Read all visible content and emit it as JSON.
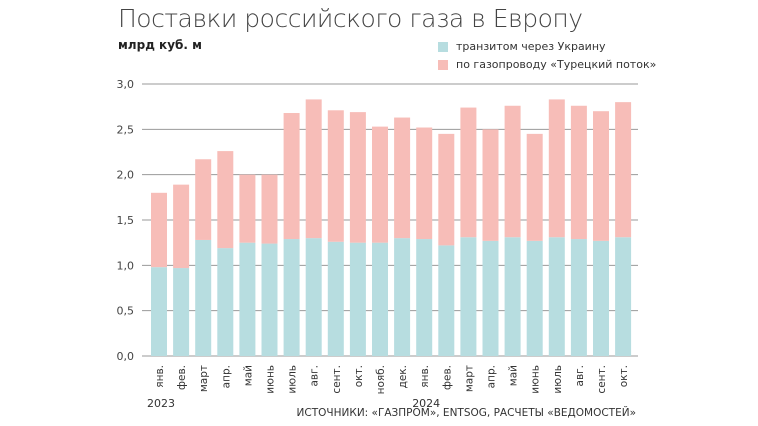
{
  "title": "Поставки российского газа в Европу",
  "unit": "млрд куб. м",
  "source": "ИСТОЧНИКИ: «ГАЗПРОМ», ENTSOG, РАСЧЕТЫ «ВЕДОМОСТЕЙ»",
  "chart_data": {
    "type": "bar",
    "stacked": true,
    "title": "Поставки российского газа в Европу",
    "ylabel": "млрд куб. м",
    "ylim": [
      0,
      3.0
    ],
    "yticks": [
      "0,0",
      "0,5",
      "1,0",
      "1,5",
      "2,0",
      "2,5",
      "3,0"
    ],
    "grid": true,
    "legend_position": "top-right",
    "categories": [
      "янв.",
      "фев.",
      "март",
      "апр.",
      "май",
      "июнь",
      "июль",
      "авг.",
      "сент.",
      "окт.",
      "нояб.",
      "дек.",
      "янв.",
      "фев.",
      "март",
      "апр.",
      "май",
      "июнь",
      "июль",
      "авг.",
      "сент.",
      "окт."
    ],
    "years": [
      {
        "label": "2023",
        "start_index": 0
      },
      {
        "label": "2024",
        "start_index": 12
      }
    ],
    "series": [
      {
        "name": "транзитом через Украину",
        "color": "#b7dde0",
        "values": [
          0.98,
          0.97,
          1.28,
          1.19,
          1.25,
          1.24,
          1.29,
          1.3,
          1.26,
          1.25,
          1.25,
          1.3,
          1.29,
          1.22,
          1.31,
          1.27,
          1.31,
          1.27,
          1.31,
          1.29,
          1.27,
          1.31
        ]
      },
      {
        "name": "по газопроводу «Турецкий поток»",
        "color": "#f7bdb8",
        "values": [
          0.82,
          0.92,
          0.89,
          1.07,
          0.75,
          0.76,
          1.39,
          1.53,
          1.45,
          1.44,
          1.28,
          1.33,
          1.23,
          1.23,
          1.43,
          1.23,
          1.45,
          1.18,
          1.52,
          1.47,
          1.43,
          1.49
        ]
      }
    ]
  }
}
